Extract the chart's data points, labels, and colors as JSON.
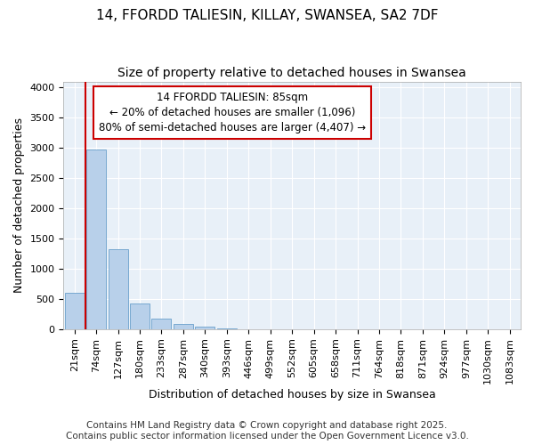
{
  "title1": "14, FFORDD TALIESIN, KILLAY, SWANSEA, SA2 7DF",
  "title2": "Size of property relative to detached houses in Swansea",
  "xlabel": "Distribution of detached houses by size in Swansea",
  "ylabel": "Number of detached properties",
  "categories": [
    "21sqm",
    "74sqm",
    "127sqm",
    "180sqm",
    "233sqm",
    "287sqm",
    "340sqm",
    "393sqm",
    "446sqm",
    "499sqm",
    "552sqm",
    "605sqm",
    "658sqm",
    "711sqm",
    "764sqm",
    "818sqm",
    "871sqm",
    "924sqm",
    "977sqm",
    "1030sqm",
    "1083sqm"
  ],
  "values": [
    600,
    2980,
    1330,
    420,
    175,
    90,
    40,
    10,
    3,
    1,
    0,
    0,
    0,
    0,
    0,
    0,
    0,
    0,
    0,
    0,
    0
  ],
  "bar_color": "#b8d0ea",
  "bar_edge_color": "#6aa0cc",
  "background_color": "#e8f0f8",
  "grid_color": "#ffffff",
  "vline_x": 0.5,
  "vline_color": "#cc0000",
  "ann_line1": "14 FFORDD TALIESIN: 85sqm",
  "ann_line2": "← 20% of detached houses are smaller (1,096)",
  "ann_line3": "80% of semi-detached houses are larger (4,407) →",
  "annotation_box_color": "#cc0000",
  "ylim": [
    0,
    4100
  ],
  "yticks": [
    0,
    500,
    1000,
    1500,
    2000,
    2500,
    3000,
    3500,
    4000
  ],
  "footer1": "Contains HM Land Registry data © Crown copyright and database right 2025.",
  "footer2": "Contains public sector information licensed under the Open Government Licence v3.0.",
  "title_fontsize": 11,
  "subtitle_fontsize": 10,
  "axis_label_fontsize": 9,
  "tick_fontsize": 8,
  "annotation_fontsize": 8.5,
  "footer_fontsize": 7.5
}
